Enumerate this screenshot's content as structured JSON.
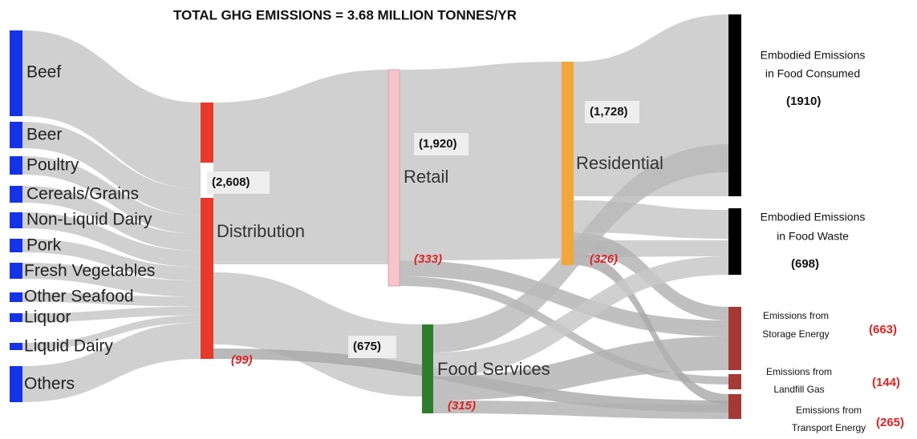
{
  "title": "TOTAL GHG EMISSIONS = 3.68 MILLION TONNES/YR",
  "sources": [
    "Beef",
    "Beer",
    "Poultry",
    "Cereals/Grains",
    "Non-Liquid Dairy",
    "Pork",
    "Fresh Vegetables",
    "Other Seafood",
    "Liquor",
    "Liquid Dairy",
    "Others"
  ],
  "stages": [
    {
      "label": "Distribution",
      "total": "(2,608)",
      "energy": "(99)"
    },
    {
      "label": "Retail",
      "total": "(1,920)",
      "energy": "(333)"
    },
    {
      "label": "Residential",
      "total": "(1,728)",
      "energy": "(326)"
    },
    {
      "label": "Food Services",
      "total": "(675)",
      "energy": "(315)"
    }
  ],
  "outcomes": [
    {
      "lines": [
        "Embodied Emissions",
        "in Food Consumed"
      ],
      "total": "(1910)"
    },
    {
      "lines": [
        "Embodied Emissions",
        "in Food Waste"
      ],
      "total": "(698)"
    },
    {
      "lines": [
        "Emissions from",
        "Storage Energy"
      ],
      "total": "(663)"
    },
    {
      "lines": [
        "Emissions from",
        "Landfill Gas"
      ],
      "total": "(144)"
    },
    {
      "lines": [
        "Emissions from",
        "Transport Energy"
      ],
      "total": "(265)"
    }
  ]
}
